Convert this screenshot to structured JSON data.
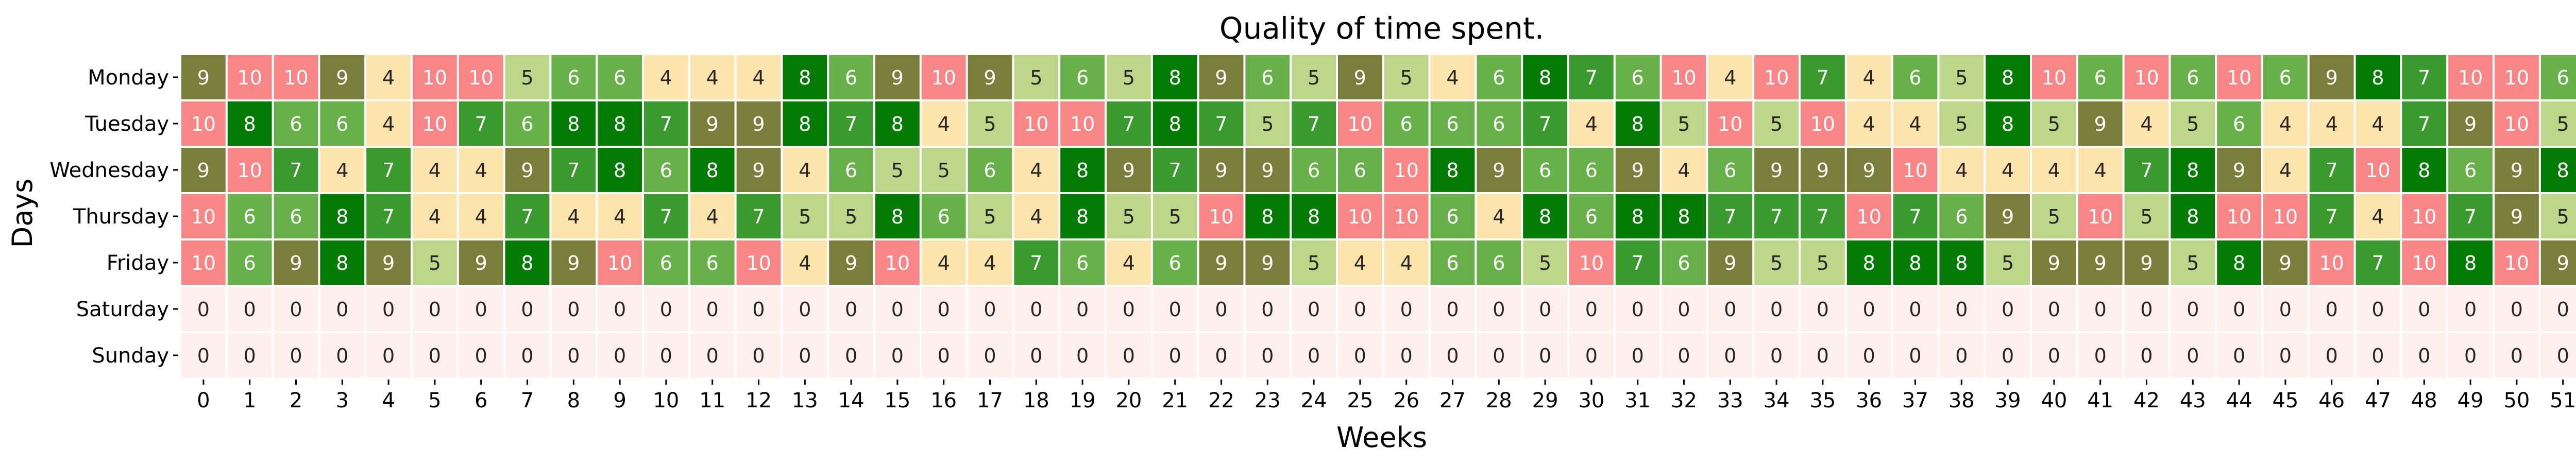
{
  "chart_data": {
    "type": "heatmap",
    "title": "Quality of time spent.",
    "xlabel": "Weeks",
    "ylabel": "Days",
    "x_ticks": [
      "0",
      "1",
      "2",
      "3",
      "4",
      "5",
      "6",
      "7",
      "8",
      "9",
      "10",
      "11",
      "12",
      "13",
      "14",
      "15",
      "16",
      "17",
      "18",
      "19",
      "20",
      "21",
      "22",
      "23",
      "24",
      "25",
      "26",
      "27",
      "28",
      "29",
      "30",
      "31",
      "32",
      "33",
      "34",
      "35",
      "36",
      "37",
      "38",
      "39",
      "40",
      "41",
      "42",
      "43",
      "44",
      "45",
      "46",
      "47",
      "48",
      "49",
      "50",
      "51"
    ],
    "y_ticks": [
      "Monday",
      "Tuesday",
      "Wednesday",
      "Thursday",
      "Friday",
      "Saturday",
      "Sunday"
    ],
    "values": [
      [
        9,
        10,
        10,
        9,
        4,
        10,
        10,
        5,
        6,
        6,
        4,
        4,
        4,
        8,
        6,
        9,
        10,
        9,
        5,
        6,
        5,
        8,
        9,
        6,
        5,
        9,
        5,
        4,
        6,
        8,
        7,
        6,
        10,
        4,
        10,
        7,
        4,
        6,
        5,
        8,
        10,
        6,
        10,
        6,
        10,
        6,
        9,
        8,
        7,
        10,
        10,
        6
      ],
      [
        10,
        8,
        6,
        6,
        4,
        10,
        7,
        6,
        8,
        8,
        7,
        9,
        9,
        8,
        7,
        8,
        4,
        5,
        10,
        10,
        7,
        8,
        7,
        5,
        7,
        10,
        6,
        6,
        6,
        7,
        4,
        8,
        5,
        10,
        5,
        10,
        4,
        4,
        5,
        8,
        5,
        9,
        4,
        5,
        6,
        4,
        4,
        4,
        7,
        9,
        10,
        5
      ],
      [
        9,
        10,
        7,
        4,
        7,
        4,
        4,
        9,
        7,
        8,
        6,
        8,
        9,
        4,
        6,
        5,
        5,
        6,
        4,
        8,
        9,
        7,
        9,
        9,
        6,
        6,
        10,
        8,
        9,
        6,
        6,
        9,
        4,
        6,
        9,
        9,
        9,
        10,
        4,
        4,
        4,
        4,
        7,
        8,
        9,
        4,
        7,
        10,
        8,
        6,
        9,
        8
      ],
      [
        10,
        6,
        6,
        8,
        7,
        4,
        4,
        7,
        4,
        4,
        7,
        4,
        7,
        5,
        5,
        8,
        6,
        5,
        4,
        8,
        5,
        5,
        10,
        8,
        8,
        10,
        10,
        6,
        4,
        8,
        6,
        8,
        8,
        7,
        7,
        7,
        10,
        7,
        6,
        9,
        5,
        10,
        5,
        8,
        10,
        10,
        7,
        4,
        10,
        7,
        9,
        5
      ],
      [
        10,
        6,
        9,
        8,
        9,
        5,
        9,
        8,
        9,
        10,
        6,
        6,
        10,
        4,
        9,
        10,
        4,
        4,
        7,
        6,
        4,
        6,
        9,
        9,
        5,
        4,
        4,
        6,
        6,
        5,
        10,
        7,
        6,
        9,
        5,
        5,
        8,
        8,
        8,
        5,
        9,
        9,
        9,
        5,
        8,
        9,
        10,
        7,
        10,
        8,
        10,
        9
      ],
      [
        0,
        0,
        0,
        0,
        0,
        0,
        0,
        0,
        0,
        0,
        0,
        0,
        0,
        0,
        0,
        0,
        0,
        0,
        0,
        0,
        0,
        0,
        0,
        0,
        0,
        0,
        0,
        0,
        0,
        0,
        0,
        0,
        0,
        0,
        0,
        0,
        0,
        0,
        0,
        0,
        0,
        0,
        0,
        0,
        0,
        0,
        0,
        0,
        0,
        0,
        0,
        0
      ],
      [
        0,
        0,
        0,
        0,
        0,
        0,
        0,
        0,
        0,
        0,
        0,
        0,
        0,
        0,
        0,
        0,
        0,
        0,
        0,
        0,
        0,
        0,
        0,
        0,
        0,
        0,
        0,
        0,
        0,
        0,
        0,
        0,
        0,
        0,
        0,
        0,
        0,
        0,
        0,
        0,
        0,
        0,
        0,
        0,
        0,
        0,
        0,
        0,
        0,
        0,
        0,
        0
      ]
    ],
    "colors": {
      "0": "#fff0ee",
      "4": "#fde3ac",
      "5": "#bdd78a",
      "6": "#68b04a",
      "7": "#3a9a2e",
      "8": "#047b05",
      "9": "#7b7d3a",
      "10": "#f98686"
    },
    "light_text_values": [
      6,
      7,
      8,
      9,
      10
    ],
    "grid": false,
    "legend": "none"
  }
}
